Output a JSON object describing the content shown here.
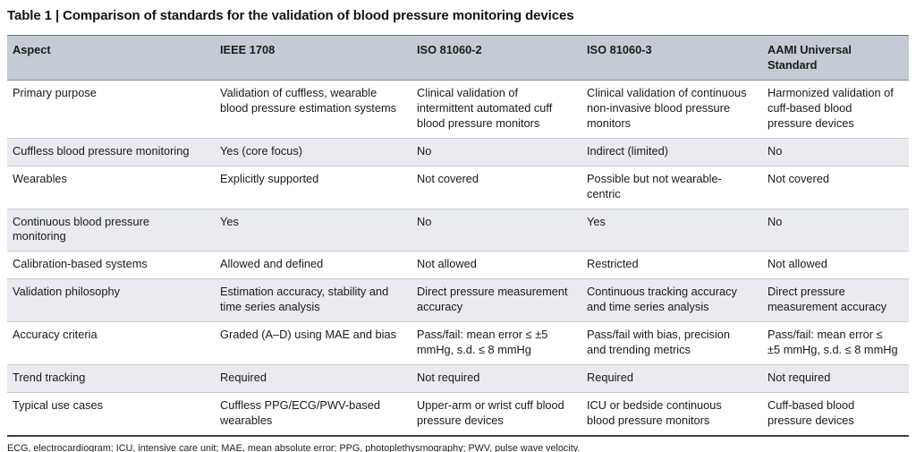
{
  "title": "Table 1 | Comparison of standards for the validation of blood pressure monitoring devices",
  "colors": {
    "header_bg": "#c5cbd5",
    "row_stripe_bg": "#e9ebf0",
    "table_bottom_border": "#3c4149",
    "text": "#1a1a1a"
  },
  "table": {
    "columns": [
      "Aspect",
      "IEEE 1708",
      "ISO 81060-2",
      "ISO 81060-3",
      "AAMI Universal Standard"
    ],
    "rows": [
      [
        "Primary purpose",
        "Validation of cuffless, wearable blood pressure estimation systems",
        "Clinical validation of intermittent automated cuff blood pressure monitors",
        "Clinical validation of continuous non-invasive blood pressure monitors",
        "Harmonized validation of cuff-based blood pressure devices"
      ],
      [
        "Cuffless blood pressure monitoring",
        "Yes (core focus)",
        "No",
        "Indirect (limited)",
        "No"
      ],
      [
        "Wearables",
        "Explicitly supported",
        "Not covered",
        "Possible but not wearable-centric",
        "Not covered"
      ],
      [
        "Continuous blood pressure monitoring",
        "Yes",
        "No",
        "Yes",
        "No"
      ],
      [
        "Calibration-based systems",
        "Allowed and defined",
        "Not allowed",
        "Restricted",
        "Not allowed"
      ],
      [
        "Validation philosophy",
        "Estimation accuracy, stability and time series analysis",
        "Direct pressure measurement accuracy",
        "Continuous tracking accuracy and time series analysis",
        "Direct pressure measurement accuracy"
      ],
      [
        "Accuracy criteria",
        "Graded (A–D) using MAE and bias",
        "Pass/fail: mean error ≤ ±5 mmHg, s.d. ≤ 8 mmHg",
        "Pass/fail with bias, precision and trending metrics",
        "Pass/fail: mean error ≤ ±5 mmHg, s.d. ≤ 8 mmHg"
      ],
      [
        "Trend tracking",
        "Required",
        "Not required",
        "Required",
        "Not required"
      ],
      [
        "Typical use cases",
        "Cuffless PPG/ECG/PWV-based wearables",
        "Upper-arm or wrist cuff blood pressure devices",
        "ICU or bedside continuous blood pressure monitors",
        "Cuff-based blood pressure devices"
      ]
    ]
  },
  "footnote": "ECG, electrocardiogram; ICU, intensive care unit; MAE, mean absolute error; PPG, photoplethysmography; PWV, pulse wave velocity."
}
